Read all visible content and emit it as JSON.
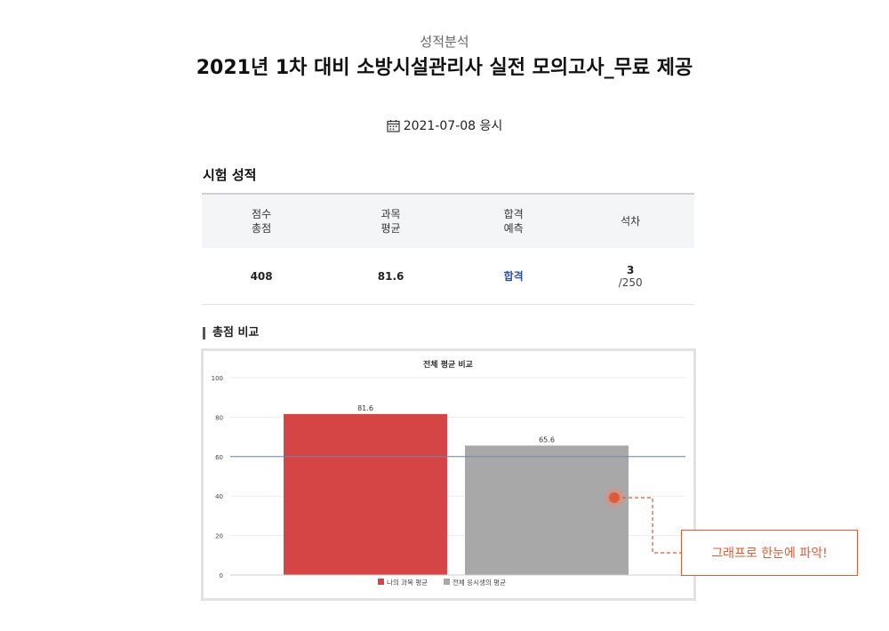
{
  "header": {
    "category": "성적분석",
    "title": "2021년 1차 대비 소방시설관리사 실전 모의고사_무료 제공",
    "date": "2021-07-08 응시"
  },
  "results": {
    "section_title": "시험 성적",
    "columns": [
      {
        "line1": "점수",
        "line2": "총점"
      },
      {
        "line1": "과목",
        "line2": "평균"
      },
      {
        "line1": "합격",
        "line2": "예측"
      },
      {
        "line1": "석차",
        "line2": ""
      }
    ],
    "values": {
      "total_score": "408",
      "subject_avg": "81.6",
      "prediction": "합격",
      "rank": "3",
      "rank_total": "/250"
    }
  },
  "compare": {
    "section_title": "총점 비교"
  },
  "chart_data": {
    "type": "bar",
    "title": "전체 평균 비교",
    "categories": [
      "나의 과목 평균",
      "전체 응시생의 평균"
    ],
    "values": [
      81.6,
      65.6
    ],
    "colors": [
      "#d64545",
      "#a8a8a8"
    ],
    "value_labels": [
      "81.6",
      "65.6"
    ],
    "ylim": [
      0,
      100
    ],
    "yticks": [
      0,
      20,
      40,
      60,
      80,
      100
    ],
    "reference_line": 60,
    "grid": true,
    "legend": "bottom",
    "xlabel": "",
    "ylabel": ""
  },
  "callout": {
    "text": "그래프로 한눈에 파악!",
    "accent": "#e05a36"
  }
}
